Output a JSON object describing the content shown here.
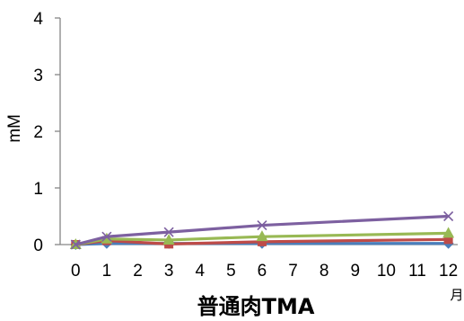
{
  "chart_data": {
    "type": "line",
    "title": "普通肉TMA",
    "xlabel": "",
    "x_unit": "月",
    "ylabel": "mM",
    "x": [
      0,
      1,
      3,
      6,
      12
    ],
    "x_ticks": [
      0,
      1,
      2,
      3,
      4,
      5,
      6,
      7,
      8,
      9,
      10,
      11,
      12
    ],
    "xlim": [
      -0.5,
      12.3
    ],
    "ylim": [
      0,
      4
    ],
    "y_ticks": [
      0,
      1,
      2,
      3,
      4
    ],
    "grid": false,
    "legend": "none",
    "series": [
      {
        "values": [
          0,
          0.02,
          0.02,
          0.02,
          0.02
        ],
        "color": "#4a7ebb",
        "marker": "diamond"
      },
      {
        "values": [
          0,
          0.07,
          0.01,
          0.05,
          0.09
        ],
        "color": "#be4b48",
        "marker": "square"
      },
      {
        "values": [
          0,
          0.1,
          0.08,
          0.14,
          0.2
        ],
        "color": "#98b954",
        "marker": "triangle"
      },
      {
        "values": [
          0,
          0.14,
          0.22,
          0.34,
          0.5
        ],
        "color": "#7d60a0",
        "marker": "x"
      }
    ]
  }
}
